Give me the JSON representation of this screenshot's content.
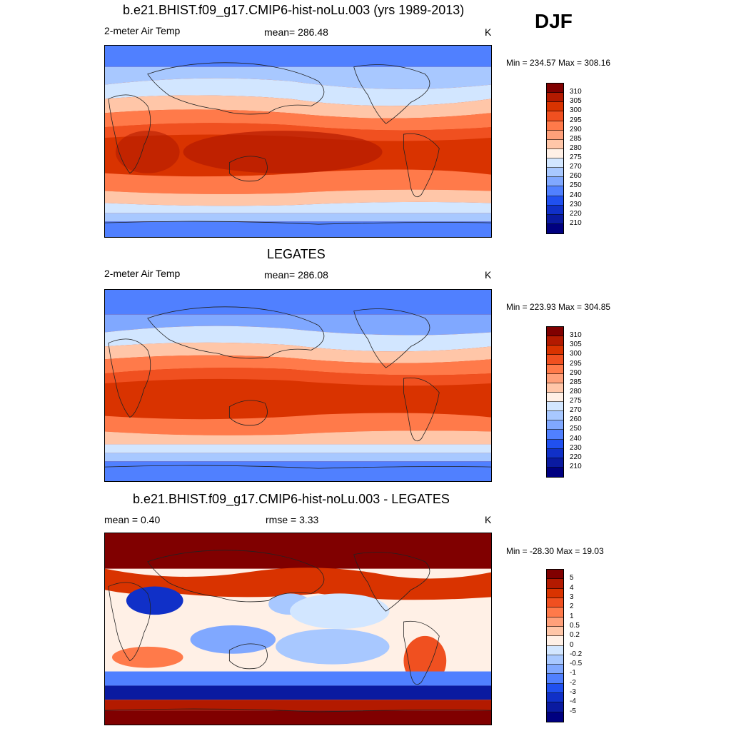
{
  "season": "DJF",
  "panels": [
    {
      "title": "b.e21.BHIST.f09_g17.CMIP6-hist-noLu.003 (yrs 1989-2013)",
      "left_label": "2-meter Air Temp",
      "center_label": "mean= 286.48",
      "unit": "K",
      "minmax": "Min = 234.57 Max = 308.16",
      "colorbar": {
        "labels": [
          "310",
          "305",
          "300",
          "295",
          "290",
          "285",
          "280",
          "275",
          "270",
          "260",
          "250",
          "240",
          "230",
          "220",
          "210"
        ],
        "colors": [
          "#800000",
          "#b31a00",
          "#d93300",
          "#f05020",
          "#ff7a4a",
          "#ffa07a",
          "#ffc6a8",
          "#fff0e6",
          "#d2e6ff",
          "#a8c8ff",
          "#80a8ff",
          "#5080ff",
          "#2050f0",
          "#1030c8",
          "#0a1aa0",
          "#000080"
        ]
      }
    },
    {
      "title": "LEGATES",
      "left_label": "2-meter Air Temp",
      "center_label": "mean= 286.08",
      "unit": "K",
      "minmax": "Min = 223.93 Max = 304.85",
      "colorbar": {
        "labels": [
          "310",
          "305",
          "300",
          "295",
          "290",
          "285",
          "280",
          "275",
          "270",
          "260",
          "250",
          "240",
          "230",
          "220",
          "210"
        ],
        "colors": [
          "#800000",
          "#b31a00",
          "#d93300",
          "#f05020",
          "#ff7a4a",
          "#ffa07a",
          "#ffc6a8",
          "#fff0e6",
          "#d2e6ff",
          "#a8c8ff",
          "#80a8ff",
          "#5080ff",
          "#2050f0",
          "#1030c8",
          "#0a1aa0",
          "#000080"
        ]
      }
    },
    {
      "title": "b.e21.BHIST.f09_g17.CMIP6-hist-noLu.003 - LEGATES",
      "left_label": "mean =   0.40",
      "center_label": "rmse =   3.33",
      "unit": "K",
      "minmax": "Min = -28.30 Max =  19.03",
      "colorbar": {
        "labels": [
          "5",
          "4",
          "3",
          "2",
          "1",
          "0.5",
          "0.2",
          "0",
          "-0.2",
          "-0.5",
          "-1",
          "-2",
          "-3",
          "-4",
          "-5"
        ],
        "colors": [
          "#800000",
          "#b31a00",
          "#d93300",
          "#f05020",
          "#ff7a4a",
          "#ffa07a",
          "#ffc6a8",
          "#fff0e6",
          "#d2e6ff",
          "#a8c8ff",
          "#80a8ff",
          "#5080ff",
          "#2050f0",
          "#1030c8",
          "#0a1aa0",
          "#000080"
        ]
      }
    }
  ]
}
